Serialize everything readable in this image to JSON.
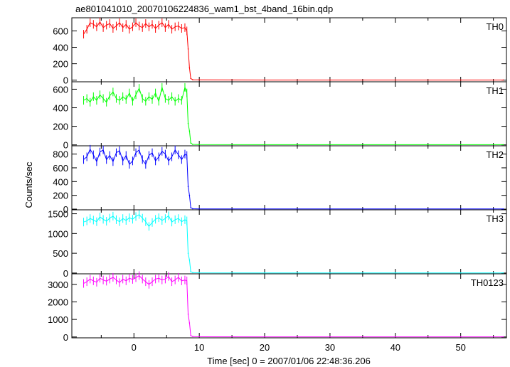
{
  "title": "ae801041010_20070106224836_wam1_bst_4band_16bin.qdp",
  "xlabel": "Time [sec] 0 = 2007/01/06 22:48:36.206",
  "ylabel": "Counts/sec",
  "colors": {
    "frame": "#000000",
    "background": "#ffffff"
  },
  "chart_data": {
    "type": "line",
    "title": "ae801041010_20070106224836_wam1_bst_4band_16bin.qdp",
    "xlabel": "Time [sec] 0 = 2007/01/06 22:48:36.206",
    "ylabel": "Counts/sec",
    "xlim": [
      -9.5,
      57
    ],
    "x_ticks": [
      0,
      10,
      20,
      30,
      40,
      50
    ],
    "x_tick_labels": [
      "0",
      "10",
      "20",
      "30",
      "40",
      "50"
    ],
    "grid": false,
    "panels": [
      {
        "name": "TH0",
        "color": "#ff0000",
        "ylim": [
          -20,
          760
        ],
        "y_ticks": [
          0,
          200,
          400,
          600
        ],
        "y_tick_labels": [
          "0",
          "200",
          "400",
          "600"
        ],
        "x": [
          -7.7,
          -7.2,
          -6.7,
          -6.2,
          -5.7,
          -5.2,
          -4.7,
          -4.2,
          -3.7,
          -3.2,
          -2.7,
          -2.2,
          -1.7,
          -1.2,
          -0.7,
          -0.2,
          0.3,
          0.8,
          1.3,
          1.8,
          2.3,
          2.8,
          3.3,
          3.8,
          4.3,
          4.8,
          5.3,
          5.8,
          6.3,
          6.8,
          7.3,
          7.8,
          8.1,
          8.3,
          8.5,
          8.7,
          9.0,
          10,
          20,
          30,
          40,
          50,
          56.5
        ],
        "y": [
          560,
          620,
          700,
          680,
          650,
          710,
          640,
          670,
          690,
          630,
          660,
          700,
          640,
          680,
          620,
          650,
          700,
          660,
          640,
          690,
          650,
          680,
          630,
          670,
          700,
          640,
          680,
          620,
          650,
          660,
          630,
          640,
          600,
          380,
          150,
          20,
          5,
          3,
          2,
          2,
          2,
          2,
          2
        ]
      },
      {
        "name": "TH1",
        "color": "#00ff00",
        "ylim": [
          -10,
          680
        ],
        "y_ticks": [
          0,
          200,
          400,
          600
        ],
        "y_tick_labels": [
          "0",
          "200",
          "400",
          "600"
        ],
        "x": [
          -7.7,
          -7.2,
          -6.7,
          -6.2,
          -5.7,
          -5.2,
          -4.7,
          -4.2,
          -3.7,
          -3.2,
          -2.7,
          -2.2,
          -1.7,
          -1.2,
          -0.7,
          -0.2,
          0.3,
          0.8,
          1.3,
          1.8,
          2.3,
          2.8,
          3.3,
          3.8,
          4.3,
          4.8,
          5.3,
          5.8,
          6.3,
          6.8,
          7.3,
          7.8,
          8.1,
          8.3,
          8.5,
          8.7,
          9.0,
          10,
          20,
          30,
          40,
          50,
          56.5
        ],
        "y": [
          480,
          500,
          460,
          520,
          480,
          540,
          500,
          460,
          530,
          570,
          500,
          480,
          520,
          490,
          560,
          470,
          540,
          610,
          500,
          470,
          520,
          490,
          560,
          470,
          620,
          500,
          480,
          520,
          470,
          500,
          480,
          620,
          560,
          230,
          150,
          20,
          5,
          3,
          2,
          2,
          2,
          2,
          2
        ]
      },
      {
        "name": "TH2",
        "color": "#0000ff",
        "ylim": [
          -10,
          920
        ],
        "y_ticks": [
          0,
          200,
          400,
          600,
          800
        ],
        "y_tick_labels": [
          "0",
          "200",
          "400",
          "600",
          "800"
        ],
        "x": [
          -7.7,
          -7.2,
          -6.7,
          -6.2,
          -5.7,
          -5.2,
          -4.7,
          -4.2,
          -3.7,
          -3.2,
          -2.7,
          -2.2,
          -1.7,
          -1.2,
          -0.7,
          -0.2,
          0.3,
          0.8,
          1.3,
          1.8,
          2.3,
          2.8,
          3.3,
          3.8,
          4.3,
          4.8,
          5.3,
          5.8,
          6.3,
          6.8,
          7.3,
          7.8,
          8.1,
          8.3,
          8.5,
          8.7,
          9.0,
          10,
          20,
          30,
          40,
          50,
          56.5
        ],
        "y": [
          720,
          760,
          870,
          790,
          690,
          830,
          860,
          720,
          780,
          690,
          820,
          850,
          700,
          780,
          650,
          700,
          820,
          860,
          720,
          650,
          780,
          820,
          700,
          760,
          840,
          800,
          700,
          760,
          860,
          790,
          720,
          800,
          780,
          330,
          200,
          20,
          5,
          3,
          2,
          2,
          2,
          2,
          2
        ]
      },
      {
        "name": "TH3",
        "color": "#00ffff",
        "ylim": [
          -20,
          1600
        ],
        "y_ticks": [
          0,
          500,
          1000,
          1500
        ],
        "y_tick_labels": [
          "0",
          "500",
          "1000",
          "1500"
        ],
        "x": [
          -7.7,
          -7.2,
          -6.7,
          -6.2,
          -5.7,
          -5.2,
          -4.7,
          -4.2,
          -3.7,
          -3.2,
          -2.7,
          -2.2,
          -1.7,
          -1.2,
          -0.7,
          -0.2,
          0.3,
          0.8,
          1.3,
          1.8,
          2.3,
          2.8,
          3.3,
          3.8,
          4.3,
          4.8,
          5.3,
          5.8,
          6.3,
          6.8,
          7.3,
          7.8,
          8.1,
          8.3,
          8.5,
          8.7,
          9.0,
          10,
          20,
          30,
          40,
          50,
          56.5
        ],
        "y": [
          1290,
          1320,
          1380,
          1340,
          1300,
          1420,
          1360,
          1310,
          1390,
          1440,
          1350,
          1300,
          1380,
          1330,
          1400,
          1360,
          1430,
          1480,
          1390,
          1300,
          1180,
          1280,
          1360,
          1400,
          1330,
          1380,
          1450,
          1290,
          1350,
          1380,
          1300,
          1350,
          1320,
          500,
          330,
          30,
          10,
          5,
          4,
          4,
          4,
          4,
          4
        ]
      },
      {
        "name": "TH0123",
        "color": "#ff00ff",
        "ylim": [
          -50,
          3600
        ],
        "y_ticks": [
          0,
          1000,
          2000,
          3000
        ],
        "y_tick_labels": [
          "0",
          "1000",
          "2000",
          "3000"
        ],
        "x": [
          -7.7,
          -7.2,
          -6.7,
          -6.2,
          -5.7,
          -5.2,
          -4.7,
          -4.2,
          -3.7,
          -3.2,
          -2.7,
          -2.2,
          -1.7,
          -1.2,
          -0.7,
          -0.2,
          0.3,
          0.8,
          1.3,
          1.8,
          2.3,
          2.8,
          3.3,
          3.8,
          4.3,
          4.8,
          5.3,
          5.8,
          6.3,
          6.8,
          7.3,
          7.8,
          8.1,
          8.3,
          8.5,
          8.7,
          9.0,
          10,
          20,
          30,
          40,
          50,
          56.5
        ],
        "y": [
          3050,
          3150,
          3300,
          3200,
          3120,
          3350,
          3250,
          3180,
          3300,
          3400,
          3250,
          3100,
          3300,
          3200,
          3350,
          3280,
          3380,
          3500,
          3300,
          3150,
          3000,
          3150,
          3300,
          3350,
          3250,
          3300,
          3450,
          3150,
          3250,
          3400,
          3200,
          3250,
          3200,
          1300,
          800,
          80,
          20,
          10,
          8,
          8,
          8,
          8,
          8
        ]
      }
    ]
  }
}
